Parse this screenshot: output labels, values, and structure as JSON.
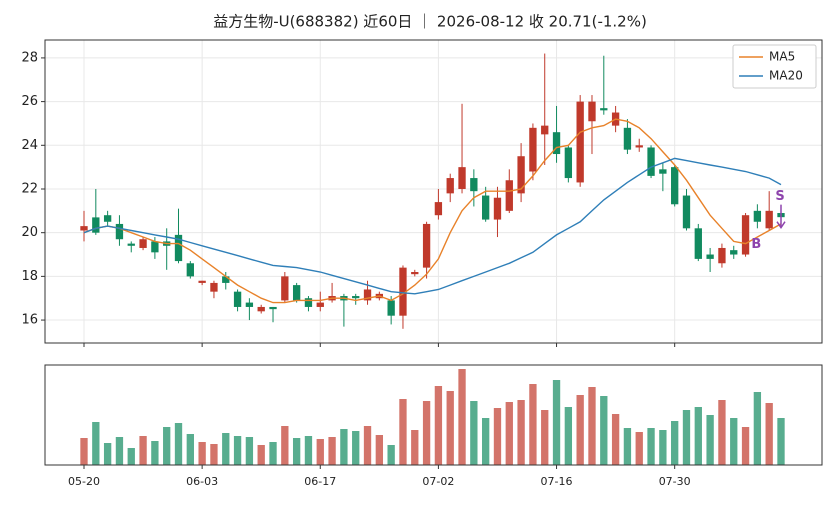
{
  "chart_data": {
    "type": "candlestick",
    "title": "益方生物-U(688382) 近60日 ｜ 2026-08-12 收 20.71(-1.2%)",
    "categories": [
      "05-20",
      null,
      null,
      null,
      null,
      null,
      null,
      null,
      null,
      null,
      "06-03",
      null,
      null,
      null,
      null,
      null,
      null,
      null,
      null,
      null,
      "06-17",
      null,
      null,
      null,
      null,
      null,
      null,
      null,
      null,
      null,
      "07-02",
      null,
      null,
      null,
      null,
      null,
      null,
      null,
      null,
      null,
      "07-16",
      null,
      null,
      null,
      null,
      null,
      null,
      null,
      null,
      null,
      "07-30",
      null,
      null,
      null,
      null,
      null,
      null,
      null,
      null,
      null
    ],
    "open": [
      20.1,
      20.7,
      20.8,
      20.4,
      19.5,
      19.3,
      19.6,
      19.6,
      19.9,
      18.6,
      17.7,
      17.3,
      18.0,
      17.3,
      16.8,
      16.4,
      16.6,
      16.9,
      17.6,
      17.0,
      16.6,
      16.9,
      17.1,
      17.1,
      16.9,
      17.0,
      16.9,
      16.2,
      18.1,
      18.4,
      20.8,
      21.8,
      22.0,
      22.5,
      21.7,
      20.6,
      21.0,
      21.8,
      22.8,
      24.5,
      24.6,
      23.9,
      22.3,
      25.1,
      25.7,
      24.9,
      24.8,
      23.9,
      23.9,
      22.9,
      23.0,
      21.7,
      20.2,
      19.0,
      18.6,
      19.2,
      19.0,
      21.0,
      20.2,
      20.9
    ],
    "high": [
      21.0,
      22.0,
      21.0,
      20.8,
      19.6,
      19.8,
      19.8,
      20.2,
      21.1,
      18.7,
      17.8,
      17.8,
      18.2,
      17.4,
      17.0,
      16.7,
      16.6,
      18.2,
      17.7,
      17.1,
      17.3,
      17.7,
      17.2,
      17.2,
      17.8,
      17.3,
      17.1,
      18.5,
      18.3,
      20.5,
      22.0,
      22.7,
      25.9,
      22.9,
      22.1,
      22.1,
      22.9,
      24.1,
      25.0,
      28.2,
      25.8,
      24.0,
      26.3,
      26.3,
      28.1,
      25.8,
      25.2,
      24.3,
      24.0,
      23.2,
      23.1,
      22.0,
      20.4,
      19.3,
      19.5,
      19.4,
      20.9,
      21.3,
      21.9,
      21.1
    ],
    "low": [
      19.6,
      19.9,
      20.3,
      19.4,
      19.1,
      19.2,
      18.8,
      18.3,
      18.6,
      17.9,
      17.6,
      17.0,
      17.4,
      16.4,
      16.0,
      16.3,
      15.9,
      16.8,
      16.8,
      16.4,
      16.4,
      16.8,
      15.7,
      16.7,
      16.7,
      16.9,
      15.8,
      15.6,
      18.0,
      17.9,
      20.6,
      21.4,
      21.8,
      21.2,
      20.5,
      19.8,
      20.9,
      21.4,
      22.4,
      23.1,
      23.2,
      22.3,
      22.1,
      23.6,
      25.4,
      24.6,
      23.6,
      23.7,
      22.5,
      21.9,
      21.2,
      20.1,
      18.7,
      18.2,
      18.4,
      18.8,
      18.9,
      20.2,
      20.1,
      20.6
    ],
    "close": [
      20.3,
      20.0,
      20.5,
      19.7,
      19.4,
      19.7,
      19.1,
      19.4,
      18.7,
      18.0,
      17.8,
      17.7,
      17.7,
      16.6,
      16.6,
      16.6,
      16.5,
      18.0,
      16.9,
      16.6,
      16.8,
      17.1,
      16.9,
      17.0,
      17.4,
      17.2,
      16.2,
      18.4,
      18.2,
      20.4,
      21.4,
      22.5,
      23.0,
      21.9,
      20.6,
      21.6,
      22.4,
      23.5,
      24.8,
      24.9,
      23.6,
      22.5,
      26.0,
      26.0,
      25.6,
      25.5,
      23.8,
      24.0,
      22.6,
      22.7,
      21.3,
      20.2,
      18.8,
      18.8,
      19.3,
      19.0,
      20.8,
      20.5,
      21.0,
      20.71
    ],
    "series": [
      {
        "name": "MA5",
        "color": "#e8822a",
        "values": [
          20.0,
          20.2,
          20.3,
          20.2,
          20.0,
          19.8,
          19.6,
          19.5,
          19.5,
          19.2,
          18.8,
          18.4,
          18.0,
          17.6,
          17.3,
          17.0,
          16.8,
          16.8,
          16.9,
          16.9,
          16.9,
          17.0,
          17.0,
          16.9,
          17.0,
          17.1,
          16.9,
          17.2,
          17.6,
          18.1,
          18.8,
          20.0,
          21.0,
          21.6,
          21.9,
          21.9,
          21.9,
          22.0,
          22.6,
          23.3,
          23.9,
          24.0,
          24.6,
          24.8,
          24.9,
          25.2,
          25.1,
          24.8,
          24.3,
          23.7,
          23.1,
          22.4,
          21.6,
          20.8,
          20.2,
          19.6,
          19.5,
          19.8,
          20.1,
          20.4
        ]
      },
      {
        "name": "MA20",
        "color": "#2f7fb8",
        "values": [
          20.0,
          20.2,
          20.3,
          20.2,
          20.1,
          20.0,
          19.9,
          19.8,
          19.7,
          19.55,
          19.4,
          19.25,
          19.1,
          18.95,
          18.8,
          18.65,
          18.5,
          18.45,
          18.4,
          18.3,
          18.2,
          18.05,
          17.9,
          17.75,
          17.6,
          17.45,
          17.3,
          17.25,
          17.2,
          17.3,
          17.4,
          17.6,
          17.8,
          18.0,
          18.2,
          18.4,
          18.6,
          18.85,
          19.1,
          19.5,
          19.9,
          20.2,
          20.5,
          21.0,
          21.5,
          21.9,
          22.3,
          22.65,
          23.0,
          23.2,
          23.4,
          23.3,
          23.2,
          23.1,
          23.0,
          22.9,
          22.8,
          22.65,
          22.5,
          22.2
        ]
      }
    ],
    "volume": [
      27,
      43,
      22,
      28,
      17,
      29,
      24,
      38,
      42,
      31,
      23,
      21,
      32,
      29,
      28,
      20,
      23,
      39,
      27,
      29,
      26,
      28,
      36,
      34,
      39,
      30,
      20,
      66,
      35,
      64,
      79,
      74,
      96,
      64,
      47,
      57,
      63,
      65,
      81,
      55,
      85,
      58,
      70,
      78,
      69,
      51,
      37,
      33,
      37,
      35,
      44,
      55,
      58,
      50,
      65,
      47,
      38,
      73,
      62,
      47
    ],
    "up_color": "#c0392b",
    "down_color": "#118a5f",
    "signal_color": "#8e44ad",
    "signals": [
      {
        "label": "B",
        "index": 57
      },
      {
        "label": "S",
        "index": 59
      }
    ],
    "ylim": [
      14.95,
      28.82
    ],
    "yticks": [
      16,
      18,
      20,
      22,
      24,
      26,
      28
    ],
    "grid": true,
    "legend": "upper right"
  }
}
